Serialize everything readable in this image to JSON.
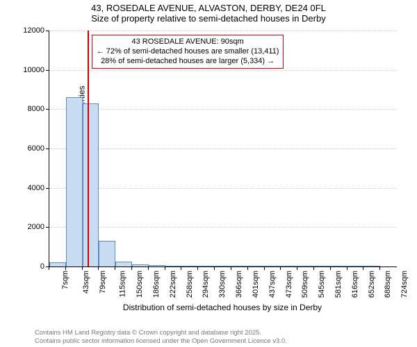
{
  "title": {
    "main": "43, ROSEDALE AVENUE, ALVASTON, DERBY, DE24 0FL",
    "sub": "Size of property relative to semi-detached houses in Derby"
  },
  "chart": {
    "type": "histogram",
    "ylabel": "Number of semi-detached properties",
    "xlabel": "Distribution of semi-detached houses by size in Derby",
    "ylim": [
      0,
      12000
    ],
    "ytick_step": 2000,
    "yticks": [
      0,
      2000,
      4000,
      6000,
      8000,
      10000,
      12000
    ],
    "xticks": [
      "7sqm",
      "43sqm",
      "79sqm",
      "115sqm",
      "150sqm",
      "186sqm",
      "222sqm",
      "258sqm",
      "294sqm",
      "330sqm",
      "366sqm",
      "401sqm",
      "437sqm",
      "473sqm",
      "509sqm",
      "545sqm",
      "581sqm",
      "616sqm",
      "652sqm",
      "688sqm",
      "724sqm"
    ],
    "bar_color": "#c9dcf2",
    "bar_border": "#5a88c2",
    "grid_color": "#cccccc",
    "background_color": "#ffffff",
    "reference_line": {
      "x_index": 2.3,
      "color": "#cc0000"
    },
    "bars": [
      {
        "x_index": 0,
        "value": 200
      },
      {
        "x_index": 1,
        "value": 8600
      },
      {
        "x_index": 2,
        "value": 8300
      },
      {
        "x_index": 3,
        "value": 1300
      },
      {
        "x_index": 4,
        "value": 250
      },
      {
        "x_index": 5,
        "value": 110
      },
      {
        "x_index": 6,
        "value": 70
      },
      {
        "x_index": 7,
        "value": 40
      },
      {
        "x_index": 8,
        "value": 25
      },
      {
        "x_index": 9,
        "value": 18
      },
      {
        "x_index": 10,
        "value": 12
      },
      {
        "x_index": 11,
        "value": 8
      },
      {
        "x_index": 12,
        "value": 6
      },
      {
        "x_index": 13,
        "value": 5
      },
      {
        "x_index": 14,
        "value": 4
      },
      {
        "x_index": 15,
        "value": 3
      },
      {
        "x_index": 16,
        "value": 3
      },
      {
        "x_index": 17,
        "value": 2
      },
      {
        "x_index": 18,
        "value": 2
      },
      {
        "x_index": 19,
        "value": 2
      }
    ],
    "annotation": {
      "line1": "43 ROSEDALE AVENUE: 90sqm",
      "line2": "← 72% of semi-detached houses are smaller (13,411)",
      "line3": "28% of semi-detached houses are larger (5,334) →"
    }
  },
  "footer": {
    "line1": "Contains HM Land Registry data © Crown copyright and database right 2025.",
    "line2": "Contains public sector information licensed under the Open Government Licence v3.0."
  }
}
